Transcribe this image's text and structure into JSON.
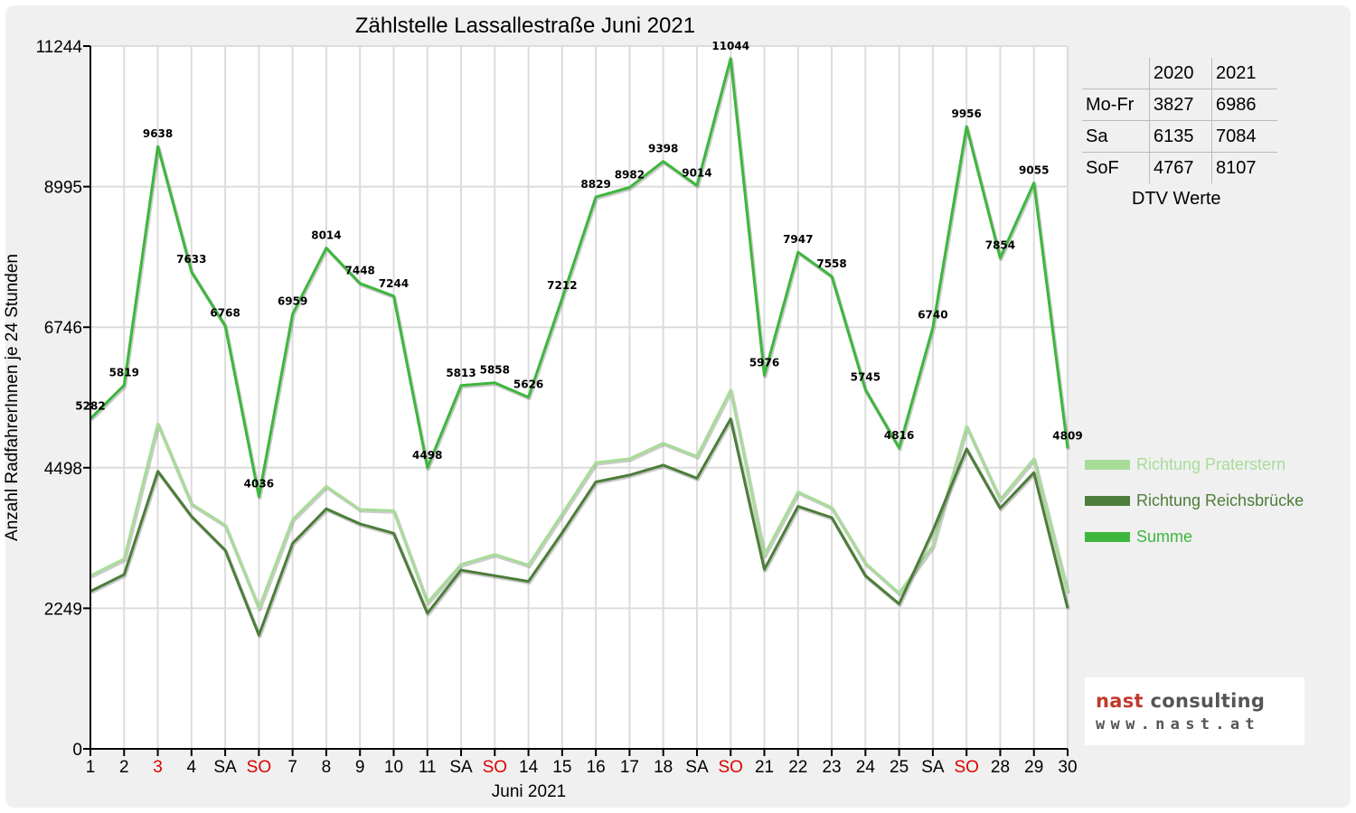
{
  "chart_data": {
    "type": "line",
    "title": "Zählstelle Lassallestraße Juni 2021",
    "xlabel": "Juni 2021",
    "ylabel": "Anzahl RadfahrerInnen je 24 Stunden",
    "ylim": [
      0,
      11244
    ],
    "yticks": [
      0,
      2249,
      4498,
      6746,
      8995,
      11244
    ],
    "grid": true,
    "legend_position": "right",
    "categories": [
      "1",
      "2",
      "3",
      "4",
      "SA",
      "SO",
      "7",
      "8",
      "9",
      "10",
      "11",
      "SA",
      "SO",
      "14",
      "15",
      "16",
      "17",
      "18",
      "SA",
      "SO",
      "21",
      "22",
      "23",
      "24",
      "25",
      "SA",
      "SO",
      "28",
      "29",
      "30"
    ],
    "highlighted_categories": [
      2,
      5,
      12,
      19,
      26
    ],
    "highlight_color": "#e00000",
    "series": [
      {
        "name": "Richtung Praterstern",
        "color": "#a8dc98",
        "values": [
          2770,
          3040,
          5200,
          3920,
          3580,
          2250,
          3670,
          4200,
          3830,
          3810,
          2340,
          2950,
          3110,
          2940,
          3760,
          4580,
          4640,
          4890,
          4680,
          5740,
          3100,
          4110,
          3860,
          2970,
          2490,
          3250,
          5160,
          3990,
          4640,
          2510
        ]
      },
      {
        "name": "Richtung Reichsbrücke",
        "color": "#4c7d3a",
        "values": [
          2520,
          2790,
          4440,
          3720,
          3180,
          1820,
          3290,
          3840,
          3600,
          3450,
          2170,
          2860,
          2770,
          2680,
          3460,
          4270,
          4380,
          4540,
          4330,
          5280,
          2870,
          3880,
          3700,
          2770,
          2320,
          3490,
          4800,
          3850,
          4420,
          2250
        ]
      },
      {
        "name": "Summe",
        "color": "#3db63d",
        "values": [
          5282,
          5819,
          9638,
          7633,
          6768,
          4036,
          6959,
          8014,
          7448,
          7244,
          4498,
          5813,
          5858,
          5626,
          7212,
          8829,
          8982,
          9398,
          9014,
          11044,
          5976,
          7947,
          7558,
          5745,
          4816,
          6740,
          9956,
          7854,
          9055,
          4809
        ],
        "data_labels": [
          "5282",
          "5819",
          "9638",
          "7633",
          "6768",
          "4036",
          "6959",
          "8014",
          "7448",
          "7244",
          "4498",
          "5813",
          "5858",
          "5626",
          "7212",
          "8829",
          "8982",
          "9398",
          "9014",
          "11044",
          "5976",
          "7947",
          "7558",
          "5745",
          "4816",
          "6740",
          "9956",
          "7854",
          "9055",
          "4809"
        ]
      }
    ]
  },
  "dtv_table": {
    "headers": [
      "",
      "2020",
      "2021"
    ],
    "rows": [
      {
        "label": "Mo-Fr",
        "v2020": "3827",
        "v2021": "6986"
      },
      {
        "label": "Sa",
        "v2020": "6135",
        "v2021": "7084"
      },
      {
        "label": "SoF",
        "v2020": "4767",
        "v2021": "8107"
      }
    ],
    "caption": "DTV Werte"
  },
  "logo": {
    "name_part1": "nast",
    "name_part2": " consulting",
    "url": "www.nast.at",
    "color_red": "#c0392b",
    "color_grey": "#555555"
  }
}
